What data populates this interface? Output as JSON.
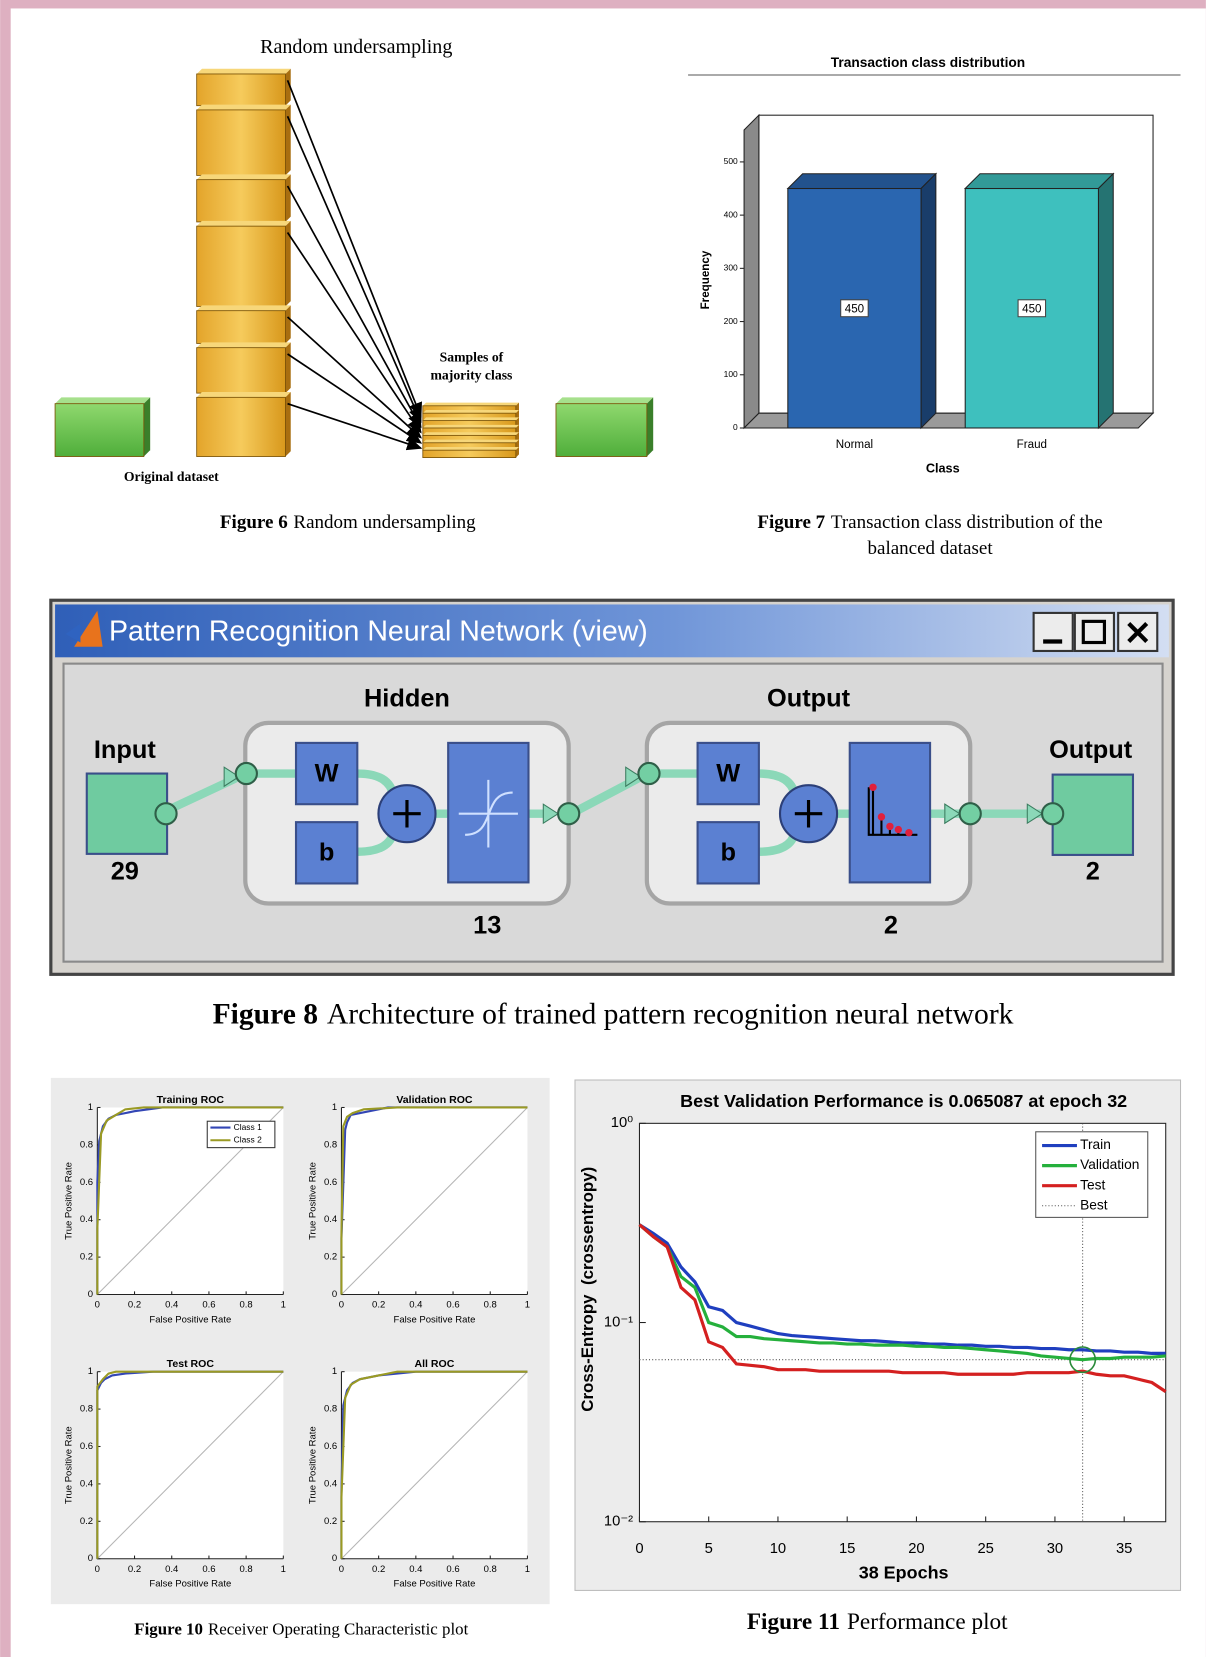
{
  "diagram_undersampling": {
    "title": "Random undersampling",
    "samples_label": [
      "Samples of",
      "majority class"
    ],
    "dataset_label": "Original dataset"
  },
  "network_view": {
    "window_title": "Pattern Recognition Neural Network (view)",
    "input_label": "Input",
    "input_size": 29,
    "hidden_label": "Hidden",
    "hidden_size": 13,
    "output_layer_label": "Output",
    "output_layer_size": 2,
    "output_label": "Output",
    "output_size": 2,
    "weight_symbol": "W",
    "bias_symbol": "b"
  },
  "chart_data": [
    {
      "type": "bar",
      "title": "Transaction class distribution",
      "xlabel": "Class",
      "ylabel": "Frequency",
      "categories": [
        "Normal",
        "Fraud"
      ],
      "values": [
        450,
        450
      ],
      "colors": [
        "#2a66b0",
        "#3ec0be"
      ],
      "ylim": [
        0,
        560
      ],
      "yticks": [
        0,
        100,
        200,
        300,
        400,
        500
      ]
    },
    {
      "type": "line",
      "title": "Training ROC",
      "xlabel": "False Positive Rate",
      "ylabel": "True Positive Rate",
      "xlim": [
        0,
        1
      ],
      "ylim": [
        0,
        1
      ],
      "xticks": [
        0,
        0.2,
        0.4,
        0.6,
        0.8,
        1
      ],
      "yticks": [
        0,
        0.2,
        0.4,
        0.6,
        0.8,
        1
      ],
      "legend": "upper right",
      "series": [
        {
          "name": "Class 1",
          "color": "#3346b5",
          "x": [
            0,
            0,
            0.01,
            0.03,
            0.06,
            0.1,
            0.2,
            0.35,
            1
          ],
          "values": [
            0,
            0.6,
            0.82,
            0.9,
            0.94,
            0.96,
            0.98,
            1,
            1
          ]
        },
        {
          "name": "Class 2",
          "color": "#9a9a24",
          "x": [
            0,
            0,
            0.02,
            0.05,
            0.1,
            0.15,
            0.25,
            1
          ],
          "values": [
            0,
            0.35,
            0.86,
            0.93,
            0.96,
            0.99,
            1,
            1
          ]
        }
      ]
    },
    {
      "type": "line",
      "title": "Validation ROC",
      "xlabel": "False Positive Rate",
      "ylabel": "True Positive Rate",
      "xlim": [
        0,
        1
      ],
      "ylim": [
        0,
        1
      ],
      "xticks": [
        0,
        0.2,
        0.4,
        0.6,
        0.8,
        1
      ],
      "yticks": [
        0,
        0.2,
        0.4,
        0.6,
        0.8,
        1
      ],
      "series": [
        {
          "color": "#3346b5",
          "x": [
            0,
            0,
            0.02,
            0.03,
            0.05,
            0.1,
            0.25,
            1
          ],
          "values": [
            0,
            0.3,
            0.88,
            0.92,
            0.96,
            0.97,
            1,
            1
          ]
        },
        {
          "color": "#9a9a24",
          "x": [
            0,
            0,
            0.01,
            0.03,
            0.06,
            0.12,
            0.3,
            1
          ],
          "values": [
            0,
            0.32,
            0.9,
            0.95,
            0.97,
            0.99,
            1,
            1
          ]
        }
      ]
    },
    {
      "type": "line",
      "title": "Test ROC",
      "xlabel": "False Positive Rate",
      "ylabel": "True Positive Rate",
      "xlim": [
        0,
        1
      ],
      "ylim": [
        0,
        1
      ],
      "xticks": [
        0,
        0.2,
        0.4,
        0.6,
        0.8,
        1
      ],
      "yticks": [
        0,
        0.2,
        0.4,
        0.6,
        0.8,
        1
      ],
      "series": [
        {
          "color": "#3346b5",
          "x": [
            0,
            0,
            0.02,
            0.04,
            0.08,
            0.15,
            0.3,
            1
          ],
          "values": [
            0,
            0.9,
            0.94,
            0.96,
            0.98,
            0.99,
            1,
            1
          ]
        },
        {
          "color": "#9a9a24",
          "x": [
            0,
            0,
            0.03,
            0.06,
            0.1,
            1
          ],
          "values": [
            0,
            0.92,
            0.96,
            0.99,
            1,
            1
          ]
        }
      ]
    },
    {
      "type": "line",
      "title": "All ROC",
      "xlabel": "False Positive Rate",
      "ylabel": "True Positive Rate",
      "xlim": [
        0,
        1
      ],
      "ylim": [
        0,
        1
      ],
      "xticks": [
        0,
        0.2,
        0.4,
        0.6,
        0.8,
        1
      ],
      "yticks": [
        0,
        0.2,
        0.4,
        0.6,
        0.8,
        1
      ],
      "series": [
        {
          "color": "#3346b5",
          "x": [
            0,
            0,
            0.01,
            0.03,
            0.06,
            0.1,
            0.2,
            0.4,
            1
          ],
          "values": [
            0,
            0.35,
            0.82,
            0.9,
            0.94,
            0.96,
            0.98,
            1,
            1
          ]
        },
        {
          "color": "#9a9a24",
          "x": [
            0,
            0,
            0.02,
            0.05,
            0.1,
            0.2,
            0.3,
            1
          ],
          "values": [
            0,
            0.33,
            0.86,
            0.93,
            0.96,
            0.98,
            1,
            1
          ]
        }
      ]
    },
    {
      "type": "line",
      "title": "Best Validation Performance is 0.065087 at epoch 32",
      "xlabel": "38 Epochs",
      "ylabel": "Cross-Entropy  (crossentropy)",
      "yscale": "log",
      "xlim": [
        0,
        38
      ],
      "ylim": [
        0.01,
        1
      ],
      "xticks": [
        0,
        5,
        10,
        15,
        20,
        25,
        30,
        35
      ],
      "yticks": [
        {
          "value": 1,
          "label": "10⁰"
        },
        {
          "value": 0.1,
          "label": "10⁻¹"
        },
        {
          "value": 0.01,
          "label": "10⁻²"
        }
      ],
      "legend": "upper right",
      "x": [
        0,
        1,
        2,
        3,
        4,
        5,
        6,
        7,
        8,
        9,
        10,
        11,
        12,
        13,
        14,
        15,
        16,
        17,
        18,
        19,
        20,
        21,
        22,
        23,
        24,
        25,
        26,
        27,
        28,
        29,
        30,
        31,
        32,
        33,
        34,
        35,
        36,
        37,
        38
      ],
      "series": [
        {
          "name": "Train",
          "color": "#1f3fbf",
          "values": [
            0.31,
            0.28,
            0.25,
            0.19,
            0.16,
            0.12,
            0.115,
            0.1,
            0.096,
            0.092,
            0.088,
            0.086,
            0.085,
            0.084,
            0.083,
            0.082,
            0.081,
            0.081,
            0.08,
            0.079,
            0.079,
            0.078,
            0.078,
            0.077,
            0.077,
            0.076,
            0.076,
            0.075,
            0.075,
            0.074,
            0.074,
            0.073,
            0.073,
            0.072,
            0.072,
            0.071,
            0.071,
            0.07,
            0.07
          ]
        },
        {
          "name": "Validation",
          "color": "#25b03c",
          "values": [
            0.31,
            0.27,
            0.24,
            0.17,
            0.15,
            0.1,
            0.095,
            0.085,
            0.085,
            0.083,
            0.082,
            0.081,
            0.08,
            0.079,
            0.079,
            0.078,
            0.078,
            0.077,
            0.077,
            0.077,
            0.076,
            0.076,
            0.075,
            0.075,
            0.074,
            0.073,
            0.072,
            0.071,
            0.07,
            0.068,
            0.067,
            0.066,
            0.065087,
            0.066,
            0.066,
            0.067,
            0.067,
            0.067,
            0.068
          ]
        },
        {
          "name": "Test",
          "color": "#d42020",
          "values": [
            0.31,
            0.27,
            0.24,
            0.15,
            0.13,
            0.08,
            0.075,
            0.062,
            0.061,
            0.06,
            0.058,
            0.058,
            0.058,
            0.057,
            0.057,
            0.057,
            0.057,
            0.057,
            0.057,
            0.056,
            0.056,
            0.056,
            0.056,
            0.055,
            0.055,
            0.055,
            0.055,
            0.055,
            0.056,
            0.056,
            0.056,
            0.056,
            0.057,
            0.055,
            0.054,
            0.054,
            0.052,
            0.05,
            0.045
          ]
        }
      ],
      "best": {
        "name": "Best",
        "epoch": 32,
        "value": 0.065087,
        "color": "#555555"
      }
    }
  ],
  "captions": [
    {
      "label": "Figure 6",
      "text": [
        "Random undersampling"
      ]
    },
    {
      "label": "Figure 7",
      "text": [
        "Transaction class distribution of the",
        "balanced dataset"
      ]
    },
    {
      "label": "Figure 8",
      "text": [
        "Architecture of trained pattern recognition neural network"
      ]
    },
    {
      "label": "Figure 10",
      "text": [
        "Receiver Operating Characteristic plot"
      ]
    },
    {
      "label": "Figure 11",
      "text": [
        "Performance plot"
      ]
    }
  ]
}
